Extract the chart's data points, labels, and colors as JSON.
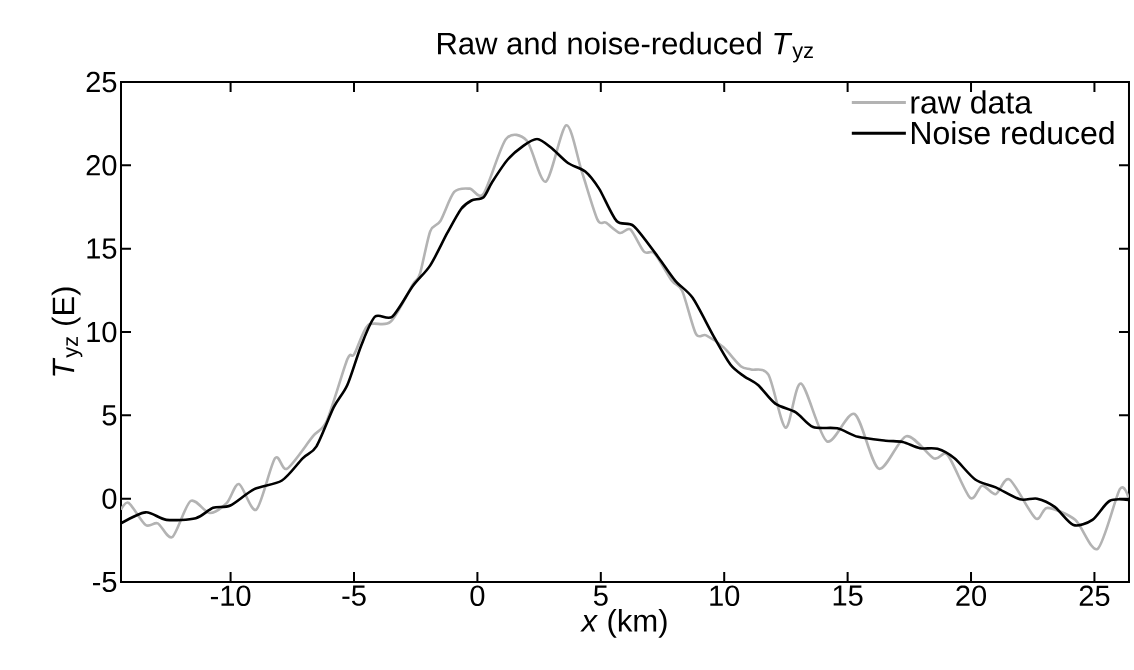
{
  "chart_data": {
    "type": "line",
    "title": "Raw and noise-reduced *T*$_{yz}$",
    "xlabel": "*x* (km)",
    "ylabel": "*T*$_{yz}$  (E)",
    "xlim": [
      -14.44,
      26.4
    ],
    "ylim": [
      -5,
      25
    ],
    "xticks": [
      -10,
      -5,
      0,
      5,
      10,
      15,
      20,
      25
    ],
    "yticks": [
      -5,
      0,
      5,
      10,
      15,
      20,
      25
    ],
    "grid": false,
    "legend": "top right",
    "marker": "none",
    "line_style": "solid",
    "series": [
      {
        "name": "raw data",
        "color": "#b3b3b3",
        "x": [
          -14.44,
          -14.13,
          -13.44,
          -12.95,
          -12.36,
          -11.62,
          -10.85,
          -10.15,
          -9.66,
          -8.96,
          -8.2,
          -7.71,
          -6.66,
          -6.1,
          -5.27,
          -4.99,
          -4.43,
          -3.52,
          -2.61,
          -2.33,
          -1.91,
          -1.5,
          -0.94,
          -0.31,
          0.25,
          1.16,
          2.0,
          2.77,
          3.6,
          4.23,
          4.86,
          5.21,
          5.77,
          6.2,
          6.75,
          7.18,
          7.88,
          8.3,
          8.85,
          9.27,
          9.97,
          10.67,
          11.09,
          11.79,
          12.49,
          13.11,
          14.16,
          15.28,
          16.26,
          17.38,
          18.49,
          19.05,
          19.96,
          20.45,
          21.0,
          21.56,
          22.61,
          23.1,
          24.22,
          25.13,
          26.03,
          26.38
        ],
        "values": [
          -0.66,
          -0.25,
          -1.58,
          -1.48,
          -2.3,
          -0.14,
          -0.86,
          -0.25,
          0.88,
          -0.66,
          2.42,
          1.8,
          3.75,
          4.67,
          8.36,
          8.67,
          10.41,
          10.61,
          12.87,
          13.48,
          16.05,
          16.66,
          18.4,
          18.6,
          18.3,
          21.58,
          21.48,
          19.02,
          22.4,
          19.63,
          16.76,
          16.56,
          15.94,
          16.15,
          14.82,
          14.71,
          13.07,
          12.46,
          9.9,
          9.8,
          9.08,
          7.95,
          7.75,
          7.44,
          4.26,
          6.91,
          3.44,
          5.08,
          1.8,
          3.75,
          2.42,
          2.62,
          0.06,
          0.78,
          0.27,
          1.15,
          -1.17,
          -0.55,
          -1.27,
          -3.01,
          0.57,
          0.06
        ]
      },
      {
        "name": "Noise reduced",
        "color": "#000000",
        "x": [
          -14.44,
          -13.44,
          -12.6,
          -11.41,
          -10.71,
          -10.01,
          -9.04,
          -7.92,
          -7.08,
          -6.52,
          -5.82,
          -5.27,
          -4.71,
          -4.15,
          -3.45,
          -2.61,
          -1.91,
          -1.22,
          -0.66,
          -0.24,
          0.25,
          0.6,
          1.23,
          1.86,
          2.42,
          2.98,
          3.67,
          4.37,
          4.93,
          5.64,
          6.34,
          7.32,
          8.02,
          8.72,
          9.55,
          10.25,
          10.81,
          11.37,
          12.07,
          12.9,
          13.6,
          14.58,
          15.42,
          16.54,
          17.23,
          17.93,
          18.64,
          19.33,
          20.17,
          21.0,
          21.98,
          22.68,
          23.39,
          24.15,
          24.92,
          25.61,
          26.38
        ],
        "values": [
          -1.48,
          -0.82,
          -1.27,
          -1.17,
          -0.55,
          -0.41,
          0.57,
          1.09,
          2.42,
          3.14,
          5.49,
          6.82,
          9.18,
          10.92,
          10.92,
          12.77,
          14.0,
          15.94,
          17.38,
          17.89,
          18.09,
          19.0,
          20.35,
          21.17,
          21.58,
          21.07,
          20.14,
          19.63,
          18.6,
          16.66,
          16.35,
          14.5,
          13.07,
          12.05,
          9.8,
          8.05,
          7.34,
          6.82,
          5.7,
          5.18,
          4.3,
          4.22,
          3.71,
          3.48,
          3.4,
          3.03,
          2.99,
          2.42,
          1.15,
          0.68,
          -0.04,
          0.0,
          -0.49,
          -1.58,
          -1.27,
          -0.14,
          -0.08
        ]
      }
    ]
  }
}
